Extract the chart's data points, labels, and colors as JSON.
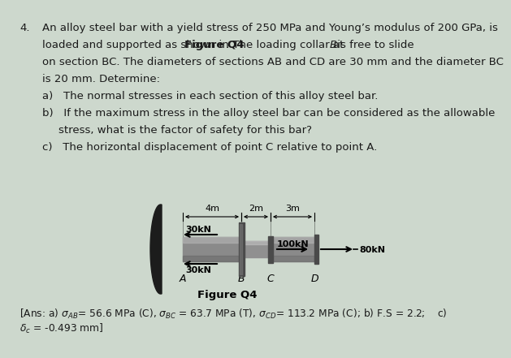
{
  "background_color": "#cdd8cd",
  "fs_main": 9.5,
  "fs_small": 8.5,
  "fs_ans": 8.8,
  "text_color": "#1a1a1a",
  "line1": "An alloy steel bar with a yield stress of 250 MPa and Young’s modulus of 200 GPa, is",
  "line2a": "loaded and supported as shown in ",
  "line2b": "Figure Q4",
  "line2c": ". The loading collar at ",
  "line2d": "B",
  "line2e": " is free to slide",
  "line3": "on section ​BC​. The diameters of sections ​AB​ and ​CD​ are 30 mm and the diameter ​BC​",
  "line4": "is 20 mm. Determine:",
  "suba": "a)   The normal stresses in each section of this alloy steel bar.",
  "subb1": "b)   If the maximum stress in the alloy steel bar can be considered as the allowable",
  "subb2": "        stress, what is the factor of safety for this bar?",
  "subc": "c)   The horizontal displacement of point C relative to point A.",
  "fig_caption": "Figure Q4",
  "ans1": "[Ans: a) σAB= 56.6 MPa (C), σBC = 63.7 MPa (T), σCD= 113.2 MPa (C); b) F.S = 2.2;    c)",
  "ans2": "δc = -0.493 mm]",
  "wall_color": "#1a1a1a",
  "bar_color": "#888888",
  "bar_light": "#b5b5b5",
  "collar_color": "#555555",
  "cd_color": "#909090"
}
